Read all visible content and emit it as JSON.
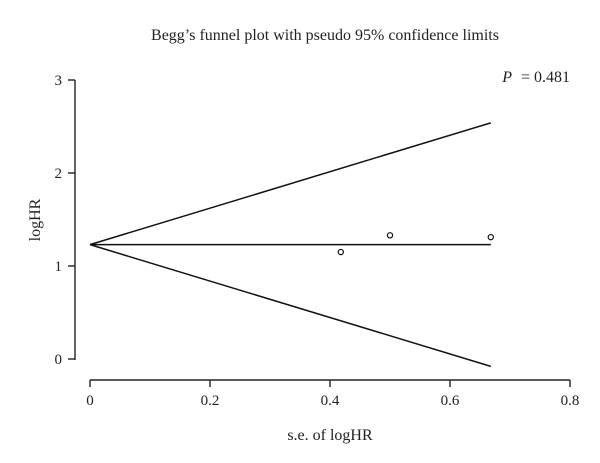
{
  "chart_data": {
    "type": "scatter",
    "title": "Begg’s funnel plot with pseudo 95% confidence limits",
    "xlabel": "s.e. of logHR",
    "ylabel": "logHR",
    "annotation": {
      "label": "P",
      "value": "= 0.481"
    },
    "xlim": [
      0,
      0.8
    ],
    "ylim": [
      0,
      3
    ],
    "xticks": [
      0,
      0.2,
      0.4,
      0.6,
      0.8
    ],
    "xtick_labels": [
      "0",
      "0.2",
      "0.4",
      "0.6",
      "0.8"
    ],
    "yticks": [
      0,
      1,
      2,
      3
    ],
    "ytick_labels": [
      "0",
      "1",
      "2",
      "3"
    ],
    "grid": false,
    "points": [
      {
        "x": 0.418,
        "y": 1.15
      },
      {
        "x": 0.5,
        "y": 1.33
      },
      {
        "x": 0.668,
        "y": 1.31
      }
    ],
    "pooled_estimate": 1.23,
    "pseudo_ci_max_se": 0.668,
    "pseudo_ci_z": 1.96
  }
}
